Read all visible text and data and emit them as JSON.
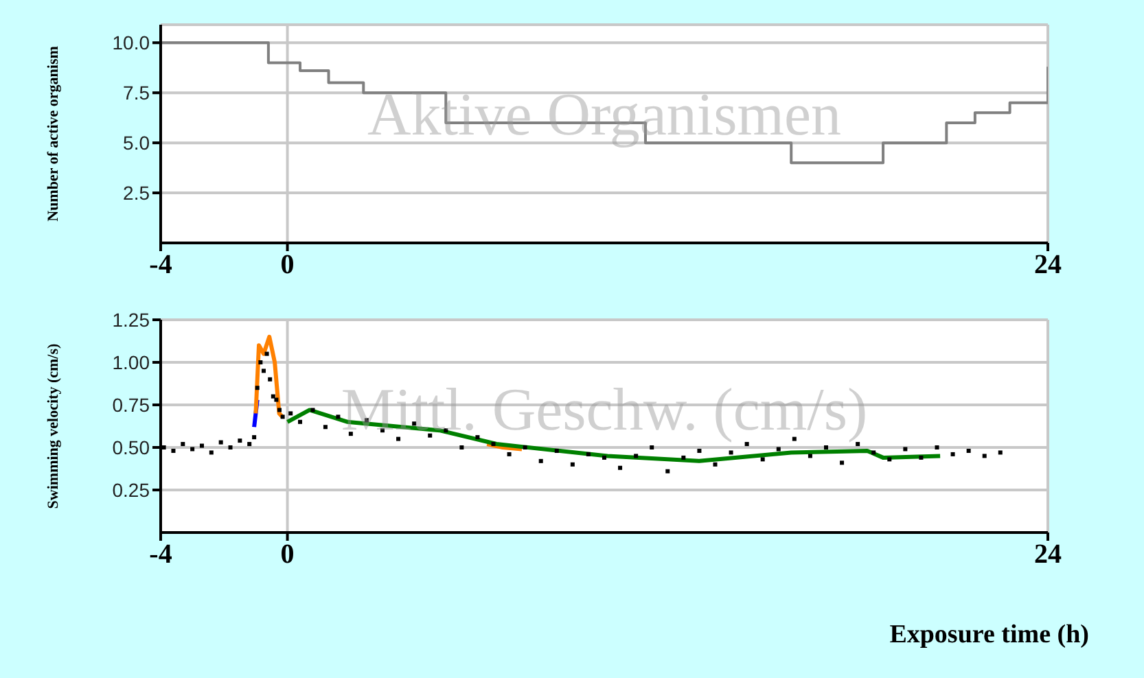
{
  "chart_data": [
    {
      "type": "step",
      "ylabel": "Number of active organism",
      "annotations": [
        "Aktive Organismen"
      ],
      "xlim": [
        -4,
        24
      ],
      "xticks": [
        -4,
        0,
        24
      ],
      "ylim": [
        0,
        10.9
      ],
      "yticks": [
        2.5,
        {
          "value": 5,
          "label": "5.0"
        },
        7.5,
        {
          "value": 10,
          "label": "10.0"
        }
      ],
      "grid": true,
      "series": [
        {
          "color": "#808080",
          "x": [
            -4,
            -0.6,
            0.4,
            1.3,
            2.4,
            5.0,
            11.3,
            15.9,
            18.8,
            20.8,
            21.7,
            22.8,
            24
          ],
          "values": [
            10,
            9,
            8.6,
            8,
            7.5,
            6,
            5,
            4,
            5,
            6,
            6.5,
            7,
            8.8
          ]
        }
      ]
    },
    {
      "type": "scatter",
      "xlabel": "Exposure time (h)",
      "ylabel": "Swimming velocity (cm/s)",
      "annotations": [
        "Mittl. Geschw. (cm/s)"
      ],
      "xlim": [
        -4,
        24
      ],
      "xticks": [
        -4,
        0,
        24
      ],
      "ylim": [
        0,
        1.25
      ],
      "yticks": [
        {
          "value": 0.25,
          "label": "0.25"
        },
        {
          "value": 0.5,
          "label": "0.50"
        },
        {
          "value": 0.75,
          "label": "0.75"
        },
        {
          "value": 1,
          "label": "1.00"
        },
        {
          "value": 1.25,
          "label": "1.25"
        }
      ],
      "grid": true,
      "series": [
        {
          "type": "scatter",
          "color": "#000000",
          "x": [
            -3.9,
            -3.6,
            -3.3,
            -3.0,
            -2.7,
            -2.4,
            -2.1,
            -1.8,
            -1.5,
            -1.2,
            -1.05,
            -0.95,
            -0.85,
            -0.75,
            -0.65,
            -0.55,
            -0.45,
            -0.35,
            -0.25,
            -0.15,
            0.1,
            0.4,
            0.8,
            1.2,
            1.6,
            2.0,
            2.5,
            3.0,
            3.5,
            4.0,
            4.5,
            5.0,
            5.5,
            6.0,
            6.5,
            7.0,
            7.5,
            8.0,
            8.5,
            9.0,
            9.5,
            10.0,
            10.5,
            11.0,
            11.5,
            12.0,
            12.5,
            13.0,
            13.5,
            14.0,
            14.5,
            15.0,
            15.5,
            16.0,
            16.5,
            17.0,
            17.5,
            18.0,
            18.5,
            19.0,
            19.5,
            20.0,
            20.5,
            21.0,
            21.5,
            22.0,
            22.5
          ],
          "values": [
            0.5,
            0.48,
            0.52,
            0.49,
            0.51,
            0.47,
            0.53,
            0.5,
            0.54,
            0.52,
            0.56,
            0.85,
            1.0,
            0.95,
            1.05,
            0.9,
            0.8,
            0.78,
            0.72,
            0.68,
            0.7,
            0.65,
            0.72,
            0.62,
            0.68,
            0.58,
            0.66,
            0.6,
            0.55,
            0.64,
            0.57,
            0.6,
            0.5,
            0.56,
            0.52,
            0.46,
            0.5,
            0.42,
            0.48,
            0.4,
            0.46,
            0.44,
            0.38,
            0.45,
            0.5,
            0.36,
            0.44,
            0.48,
            0.4,
            0.47,
            0.52,
            0.43,
            0.49,
            0.55,
            0.45,
            0.5,
            0.41,
            0.52,
            0.47,
            0.43,
            0.49,
            0.44,
            0.5,
            0.46,
            0.48,
            0.45,
            0.47
          ]
        },
        {
          "type": "line",
          "color": "#0000ff",
          "x": [
            -1.05,
            -1.0,
            -0.95
          ],
          "values": [
            0.62,
            0.7,
            0.78
          ]
        },
        {
          "type": "line",
          "color": "#ff8000",
          "x": [
            -1.0,
            -0.9,
            -0.75,
            -0.57,
            -0.4,
            -0.26,
            -0.16
          ],
          "values": [
            0.7,
            1.1,
            1.05,
            1.15,
            1.0,
            0.7,
            0.68
          ]
        },
        {
          "type": "line",
          "color": "#ff8000",
          "x": [
            6.3,
            6.8,
            7.4
          ],
          "values": [
            0.52,
            0.5,
            0.49
          ]
        },
        {
          "type": "line",
          "color": "#008000",
          "x": [
            0,
            0.7,
            1.9,
            4.8,
            6.6,
            10.1,
            13,
            15.9,
            18.3,
            18.8,
            20.6
          ],
          "values": [
            0.65,
            0.72,
            0.65,
            0.6,
            0.52,
            0.45,
            0.42,
            0.47,
            0.48,
            0.44,
            0.45
          ]
        }
      ]
    }
  ]
}
